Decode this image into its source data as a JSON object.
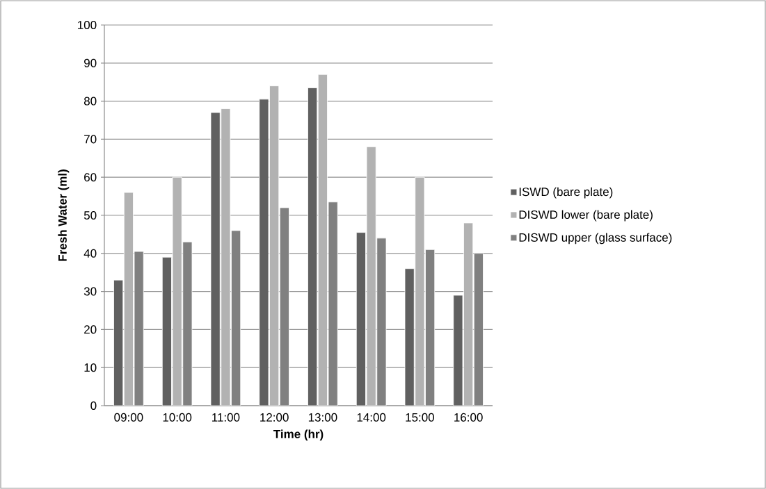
{
  "chart_data": {
    "type": "bar",
    "xlabel": "Time (hr)",
    "ylabel": "Fresh Water (ml)",
    "categories": [
      "09:00",
      "10:00",
      "11:00",
      "12:00",
      "13:00",
      "14:00",
      "15:00",
      "16:00"
    ],
    "series": [
      {
        "name": "ISWD (bare plate)",
        "color": "#606060",
        "values": [
          33,
          39,
          77,
          80.5,
          83.5,
          45.5,
          36,
          29
        ]
      },
      {
        "name": "DISWD lower (bare plate)",
        "color": "#b2b2b2",
        "values": [
          56,
          60,
          78,
          84,
          87,
          68,
          60,
          48
        ]
      },
      {
        "name": "DISWD upper (glass surface)",
        "color": "#808080",
        "values": [
          40.5,
          43,
          46,
          52,
          53.5,
          44,
          41,
          40
        ]
      }
    ],
    "ylim": [
      0,
      100
    ],
    "yticks": [
      0,
      10,
      20,
      30,
      40,
      50,
      60,
      70,
      80,
      90,
      100
    ],
    "grid": "y",
    "legend": "right"
  }
}
